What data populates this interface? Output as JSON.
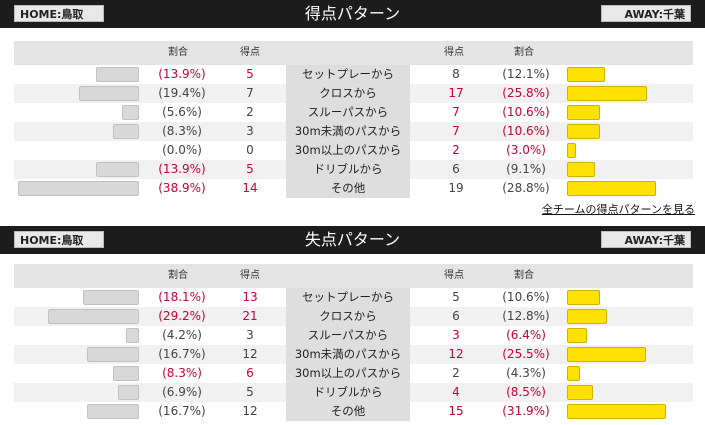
{
  "link_all_teams": "全チームの得点パターンを見る",
  "sections": [
    {
      "title": "得点パターン",
      "home_label": "HOME:鳥取",
      "away_label": "AWAY:千葉",
      "col_ratio": "割合",
      "col_points": "得点",
      "rows": [
        {
          "pattern": "セットプレーから",
          "home_pct": "(13.9%)",
          "home_val": "5",
          "away_val": "8",
          "away_pct": "(12.1%)",
          "home_frac": 0.139,
          "away_frac": 0.121,
          "home_red": true,
          "away_red": false
        },
        {
          "pattern": "クロスから",
          "home_pct": "(19.4%)",
          "home_val": "7",
          "away_val": "17",
          "away_pct": "(25.8%)",
          "home_frac": 0.194,
          "away_frac": 0.258,
          "home_red": false,
          "away_red": true
        },
        {
          "pattern": "スルーパスから",
          "home_pct": "(5.6%)",
          "home_val": "2",
          "away_val": "7",
          "away_pct": "(10.6%)",
          "home_frac": 0.056,
          "away_frac": 0.106,
          "home_red": false,
          "away_red": true
        },
        {
          "pattern": "30m未満のパスから",
          "home_pct": "(8.3%)",
          "home_val": "3",
          "away_val": "7",
          "away_pct": "(10.6%)",
          "home_frac": 0.083,
          "away_frac": 0.106,
          "home_red": false,
          "away_red": true
        },
        {
          "pattern": "30m以上のパスから",
          "home_pct": "(0.0%)",
          "home_val": "0",
          "away_val": "2",
          "away_pct": "(3.0%)",
          "home_frac": 0.0,
          "away_frac": 0.03,
          "home_red": false,
          "away_red": true
        },
        {
          "pattern": "ドリブルから",
          "home_pct": "(13.9%)",
          "home_val": "5",
          "away_val": "6",
          "away_pct": "(9.1%)",
          "home_frac": 0.139,
          "away_frac": 0.091,
          "home_red": true,
          "away_red": false
        },
        {
          "pattern": "その他",
          "home_pct": "(38.9%)",
          "home_val": "14",
          "away_val": "19",
          "away_pct": "(28.8%)",
          "home_frac": 0.389,
          "away_frac": 0.288,
          "home_red": true,
          "away_red": false
        }
      ]
    },
    {
      "title": "失点パターン",
      "home_label": "HOME:鳥取",
      "away_label": "AWAY:千葉",
      "col_ratio": "割合",
      "col_points": "得点",
      "rows": [
        {
          "pattern": "セットプレーから",
          "home_pct": "(18.1%)",
          "home_val": "13",
          "away_val": "5",
          "away_pct": "(10.6%)",
          "home_frac": 0.181,
          "away_frac": 0.106,
          "home_red": true,
          "away_red": false
        },
        {
          "pattern": "クロスから",
          "home_pct": "(29.2%)",
          "home_val": "21",
          "away_val": "6",
          "away_pct": "(12.8%)",
          "home_frac": 0.292,
          "away_frac": 0.128,
          "home_red": true,
          "away_red": false
        },
        {
          "pattern": "スルーパスから",
          "home_pct": "(4.2%)",
          "home_val": "3",
          "away_val": "3",
          "away_pct": "(6.4%)",
          "home_frac": 0.042,
          "away_frac": 0.064,
          "home_red": false,
          "away_red": true
        },
        {
          "pattern": "30m未満のパスから",
          "home_pct": "(16.7%)",
          "home_val": "12",
          "away_val": "12",
          "away_pct": "(25.5%)",
          "home_frac": 0.167,
          "away_frac": 0.255,
          "home_red": false,
          "away_red": true
        },
        {
          "pattern": "30m以上のパスから",
          "home_pct": "(8.3%)",
          "home_val": "6",
          "away_val": "2",
          "away_pct": "(4.3%)",
          "home_frac": 0.083,
          "away_frac": 0.043,
          "home_red": true,
          "away_red": false
        },
        {
          "pattern": "ドリブルから",
          "home_pct": "(6.9%)",
          "home_val": "5",
          "away_val": "4",
          "away_pct": "(8.5%)",
          "home_frac": 0.069,
          "away_frac": 0.085,
          "home_red": false,
          "away_red": true
        },
        {
          "pattern": "その他",
          "home_pct": "(16.7%)",
          "home_val": "12",
          "away_val": "15",
          "away_pct": "(31.9%)",
          "home_frac": 0.167,
          "away_frac": 0.319,
          "home_red": false,
          "away_red": true
        }
      ]
    }
  ]
}
